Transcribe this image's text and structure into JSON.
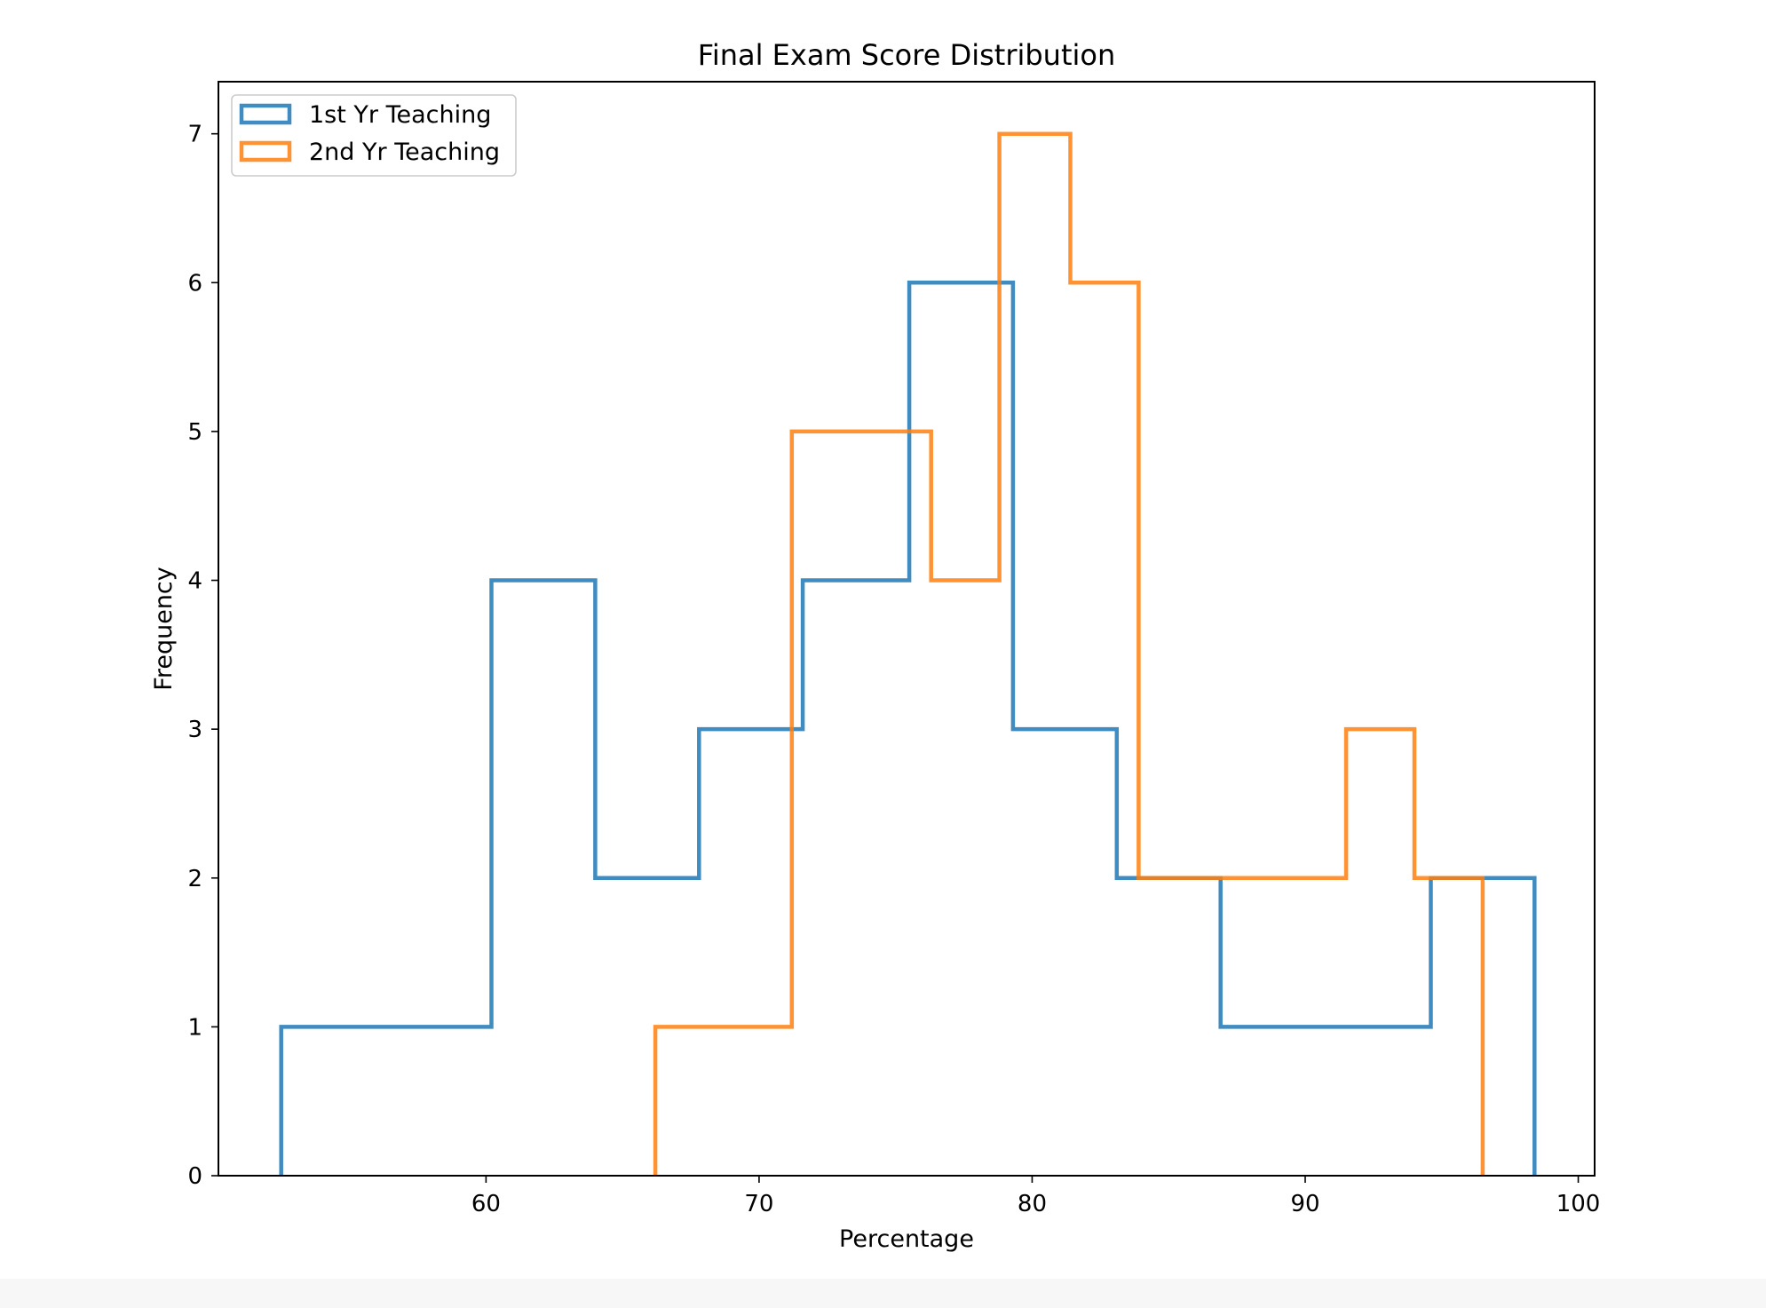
{
  "chart_data": {
    "type": "histogram",
    "title": "Final Exam Score Distribution",
    "xlabel": "Percentage",
    "ylabel": "Frequency",
    "xlim": [
      50.2,
      100.6
    ],
    "ylim": [
      0,
      7.35
    ],
    "xticks": [
      60,
      70,
      80,
      90,
      100
    ],
    "yticks": [
      0,
      1,
      2,
      3,
      4,
      5,
      6,
      7
    ],
    "legend_position": "upper left",
    "grid": false,
    "series": [
      {
        "name": "1st Yr Teaching",
        "color": "#1f77b4",
        "bin_edges": [
          52.5,
          56.3,
          60.2,
          64.0,
          67.8,
          71.6,
          75.5,
          79.3,
          83.1,
          86.9,
          90.8,
          94.6,
          98.4
        ],
        "counts": [
          1,
          1,
          4,
          2,
          3,
          4,
          6,
          3,
          2,
          1,
          1,
          2
        ]
      },
      {
        "name": "2nd Yr Teaching",
        "color": "#ff7f0e",
        "bin_edges": [
          66.2,
          68.7,
          71.2,
          73.8,
          76.3,
          78.8,
          81.4,
          83.9,
          86.4,
          89.0,
          91.5,
          94.0,
          96.5
        ],
        "counts": [
          1,
          1,
          5,
          5,
          4,
          7,
          6,
          2,
          2,
          2,
          3,
          2
        ]
      }
    ]
  }
}
